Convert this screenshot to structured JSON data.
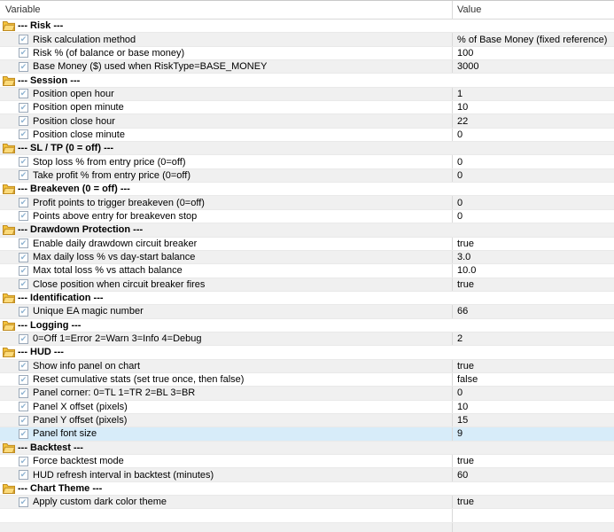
{
  "window": {
    "title": "Expert inputs parameter table"
  },
  "header": {
    "variable": "Variable",
    "value": "Value"
  },
  "colors": {
    "gray_row": "#f0f0f0",
    "selected_row": "#d7ecf9",
    "grid_line": "#d9d9d9",
    "folder_fill": "#f5c43c",
    "folder_front": "#fbda7a",
    "folder_outline": "#bf8b20",
    "checkbox_check": "#8fb3d1"
  },
  "checkbox_glyph": "✔",
  "rows": [
    {
      "type": "group",
      "label": "--- Risk ---"
    },
    {
      "type": "param",
      "label": "Risk calculation method",
      "value": "% of Base Money (fixed reference)",
      "checked": true
    },
    {
      "type": "param",
      "label": "Risk % (of balance or base money)",
      "value": "100",
      "checked": true
    },
    {
      "type": "param",
      "label": "Base Money ($) used when RiskType=BASE_MONEY",
      "value": "3000",
      "checked": true
    },
    {
      "type": "group",
      "label": "--- Session ---"
    },
    {
      "type": "param",
      "label": "Position open hour",
      "value": "1",
      "checked": true
    },
    {
      "type": "param",
      "label": "Position open minute",
      "value": "10",
      "checked": true
    },
    {
      "type": "param",
      "label": "Position close hour",
      "value": "22",
      "checked": true
    },
    {
      "type": "param",
      "label": "Position close minute",
      "value": "0",
      "checked": true
    },
    {
      "type": "group",
      "label": "--- SL / TP (0 = off) ---"
    },
    {
      "type": "param",
      "label": "Stop loss % from entry price (0=off)",
      "value": "0",
      "checked": true
    },
    {
      "type": "param",
      "label": "Take profit % from entry price (0=off)",
      "value": "0",
      "checked": true
    },
    {
      "type": "group",
      "label": "--- Breakeven (0 = off) ---"
    },
    {
      "type": "param",
      "label": "Profit points to trigger breakeven (0=off)",
      "value": "0",
      "checked": true
    },
    {
      "type": "param",
      "label": "Points above entry for breakeven stop",
      "value": "0",
      "checked": true
    },
    {
      "type": "group",
      "label": "--- Drawdown Protection ---"
    },
    {
      "type": "param",
      "label": "Enable daily drawdown circuit breaker",
      "value": "true",
      "checked": true
    },
    {
      "type": "param",
      "label": "Max daily loss % vs day-start balance",
      "value": "3.0",
      "checked": true
    },
    {
      "type": "param",
      "label": "Max total loss % vs attach balance",
      "value": "10.0",
      "checked": true
    },
    {
      "type": "param",
      "label": "Close position when circuit breaker fires",
      "value": "true",
      "checked": true
    },
    {
      "type": "group",
      "label": "--- Identification ---"
    },
    {
      "type": "param",
      "label": "Unique EA magic number",
      "value": "66",
      "checked": true
    },
    {
      "type": "group",
      "label": "--- Logging ---"
    },
    {
      "type": "param",
      "label": "0=Off 1=Error 2=Warn 3=Info 4=Debug",
      "value": "2",
      "checked": true
    },
    {
      "type": "group",
      "label": "--- HUD ---"
    },
    {
      "type": "param",
      "label": "Show info panel on chart",
      "value": "true",
      "checked": true
    },
    {
      "type": "param",
      "label": "Reset cumulative stats (set true once, then false)",
      "value": "false",
      "checked": true
    },
    {
      "type": "param",
      "label": "Panel corner: 0=TL 1=TR 2=BL 3=BR",
      "value": "0",
      "checked": true
    },
    {
      "type": "param",
      "label": "Panel X offset (pixels)",
      "value": "10",
      "checked": true
    },
    {
      "type": "param",
      "label": "Panel Y offset (pixels)",
      "value": "15",
      "checked": true
    },
    {
      "type": "param",
      "label": "Panel font size",
      "value": "9",
      "checked": true,
      "selected": true
    },
    {
      "type": "group",
      "label": "--- Backtest ---"
    },
    {
      "type": "param",
      "label": "Force backtest mode",
      "value": "true",
      "checked": true
    },
    {
      "type": "param",
      "label": "HUD refresh interval in backtest (minutes)",
      "value": "60",
      "checked": true
    },
    {
      "type": "group",
      "label": "--- Chart Theme ---"
    },
    {
      "type": "param",
      "label": "Apply custom dark color theme",
      "value": "true",
      "checked": true
    },
    {
      "type": "empty"
    },
    {
      "type": "empty"
    }
  ]
}
